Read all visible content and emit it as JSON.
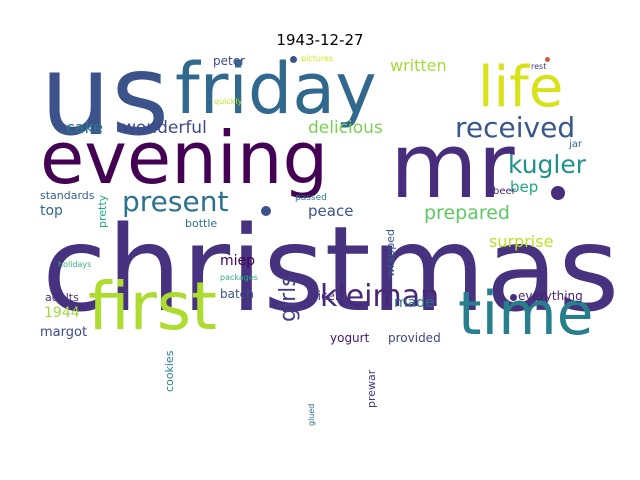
{
  "title": "1943-12-27",
  "words": [
    {
      "text": "christmas",
      "color": "#46327e"
    },
    {
      "text": "us",
      "color": "#3b528b"
    },
    {
      "text": "evening",
      "color": "#440154"
    },
    {
      "text": "mr",
      "color": "#472d7b"
    },
    {
      "text": "friday",
      "color": "#31688e"
    },
    {
      "text": "first",
      "color": "#addc30"
    },
    {
      "text": "time",
      "color": "#277f8e"
    },
    {
      "text": "life",
      "color": "#d8e219"
    },
    {
      "text": "received",
      "color": "#38588c"
    },
    {
      "text": "kleiman",
      "color": "#482878"
    },
    {
      "text": "present",
      "color": "#2c728e"
    },
    {
      "text": "kugler",
      "color": "#21918c"
    },
    {
      "text": "girls",
      "color": "#433e85"
    },
    {
      "text": "prepared",
      "color": "#5ec962"
    },
    {
      "text": "wonderful",
      "color": "#3e4989"
    },
    {
      "text": "delicious",
      "color": "#7ad151"
    },
    {
      "text": "written",
      "color": "#a5db36"
    },
    {
      "text": "cake",
      "color": "#2a788e"
    },
    {
      "text": "surprise",
      "color": "#bddf26"
    },
    {
      "text": "bep",
      "color": "#21a685"
    },
    {
      "text": "peace",
      "color": "#3b528b"
    },
    {
      "text": "top",
      "color": "#31688e"
    },
    {
      "text": "1944",
      "color": "#9fda3a"
    },
    {
      "text": "miep",
      "color": "#440154"
    },
    {
      "text": "made",
      "color": "#2c728e"
    },
    {
      "text": "margot",
      "color": "#3e4989"
    },
    {
      "text": "adults",
      "color": "#472d7b"
    },
    {
      "text": "batch",
      "color": "#3b528b"
    },
    {
      "text": "nicely",
      "color": "#46327e"
    },
    {
      "text": "everything",
      "color": "#481f70"
    },
    {
      "text": "yogurt",
      "color": "#48186a"
    },
    {
      "text": "provided",
      "color": "#414487"
    },
    {
      "text": "peter",
      "color": "#3e4989"
    },
    {
      "text": "pretty",
      "color": "#22a884"
    },
    {
      "text": "wrapped",
      "color": "#38588c"
    },
    {
      "text": "standards",
      "color": "#33638d"
    },
    {
      "text": "bottle",
      "color": "#2c728e"
    },
    {
      "text": "cookies",
      "color": "#26828e"
    },
    {
      "text": "prewar",
      "color": "#443a83"
    },
    {
      "text": "beer",
      "color": "#482475"
    },
    {
      "text": "jar",
      "color": "#31688e"
    },
    {
      "text": "passed",
      "color": "#287d8e"
    },
    {
      "text": "glued",
      "color": "#2f6c8e"
    },
    {
      "text": "holidays",
      "color": "#35b779"
    },
    {
      "text": "packages",
      "color": "#29af7f"
    },
    {
      "text": "pictures",
      "color": "#d8e219"
    },
    {
      "text": "quickly",
      "color": "#c0df25"
    },
    {
      "text": "rest",
      "color": "#453781"
    }
  ]
}
